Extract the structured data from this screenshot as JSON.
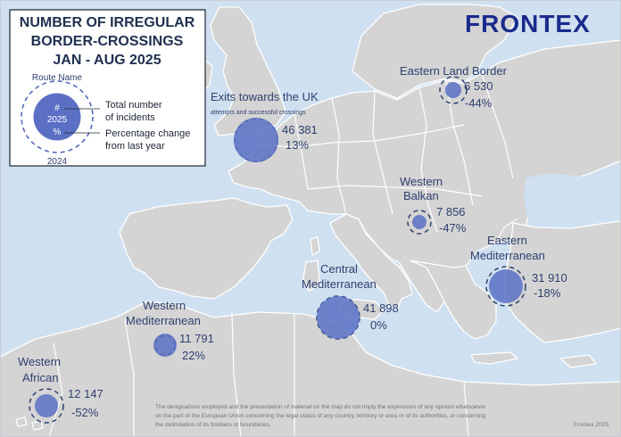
{
  "title": [
    "NUMBER OF IRREGULAR",
    "BORDER-CROSSINGS",
    "JAN - AUG 2025"
  ],
  "brand": "FRONTEX",
  "legend": {
    "route_name": "Route Name",
    "count_symbol": "#",
    "year_current": "2025",
    "percent_symbol": "%",
    "year_prev": "2024",
    "desc_total": [
      "Total number",
      "of incidents"
    ],
    "desc_pct": [
      "Percentage change",
      "from last year"
    ]
  },
  "routes": [
    {
      "name": [
        "Exits towards the UK"
      ],
      "sub": "attempts and successful crossings",
      "count": "46 381",
      "change": "13%"
    },
    {
      "name": [
        "Eastern Land Border"
      ],
      "count": "6 530",
      "change": "-44%"
    },
    {
      "name": [
        "Western",
        "Balkan"
      ],
      "count": "7 856",
      "change": "-47%"
    },
    {
      "name": [
        "Eastern",
        "Mediterranean"
      ],
      "count": "31 910",
      "change": "-18%"
    },
    {
      "name": [
        "Central",
        "Mediterranean"
      ],
      "count": "41 898",
      "change": "0%"
    },
    {
      "name": [
        "Western",
        "Mediterranean"
      ],
      "count": "11 791",
      "change": "22%"
    },
    {
      "name": [
        "Western",
        "African"
      ],
      "count": "12 147",
      "change": "-52%"
    }
  ],
  "disclaimer": [
    "The designations employed and the presentation of material on the map do not imply the expression of any opinion whatsoever",
    "on the part of the European Union concerning the legal status of any country, territory or area or of its authorities, or concerning",
    "the delimitation of its frontiers or boundaries."
  ],
  "credit": "Frontex 2025",
  "colors": {
    "sea": "#cfe0f0",
    "land": "#d4d4d4",
    "circle": "#5b70c4",
    "text": "#2e3f6e",
    "brand": "#1a2b8c"
  }
}
